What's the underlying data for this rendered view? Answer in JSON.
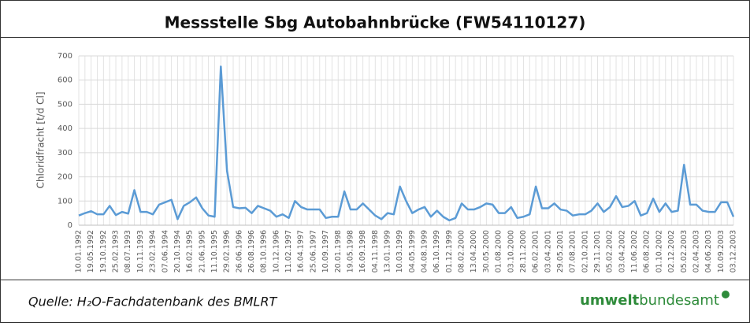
{
  "chart_data": {
    "type": "line",
    "title": "Messstelle Sbg Autobahnbrücke (FW54110127)",
    "y_label": "Chloridfracht [t/d Cl]",
    "source": "Quelle: H₂O-Fachdatenbank des BMLRT",
    "logo": {
      "bold": "umwelt",
      "light": "bundesamt"
    },
    "categories": [
      "10.01.1992",
      null,
      "19.05.1992",
      null,
      "19.10.1992",
      null,
      "25.02.1993",
      null,
      "08.07.1993",
      null,
      "10.11.1993",
      null,
      "23.02.1994",
      null,
      "07.06.1994",
      null,
      "20.10.1994",
      null,
      "16.02.1995",
      null,
      "21.06.1995",
      null,
      "11.10.1995",
      null,
      "29.02.1996",
      null,
      "26.06.1996",
      null,
      "26.08.1996",
      null,
      "08.10.1996",
      null,
      "10.12.1996",
      null,
      "11.02.1997",
      null,
      "16.04.1997",
      null,
      "25.06.1997",
      null,
      "10.09.1997",
      null,
      "20.01.1998",
      null,
      "19.05.1998",
      null,
      "16.09.1998",
      null,
      "04.11.1998",
      null,
      "13.01.1999",
      null,
      "10.03.1999",
      null,
      "04.05.1999",
      null,
      "04.08.1999",
      null,
      "06.10.1999",
      null,
      "01.12.1999",
      null,
      "08.02.2000",
      null,
      "13.04.2000",
      null,
      "30.05.2000",
      null,
      "01.08.2000",
      null,
      "03.10.2000",
      null,
      "28.11.2000",
      null,
      "06.02.2001",
      null,
      "03.04.2001",
      null,
      "29.05.2001",
      null,
      "07.08.2001",
      null,
      "02.10.2001",
      null,
      "29.11.2001",
      null,
      "05.02.2002",
      null,
      "03.04.2002",
      null,
      "11.06.2002",
      null,
      "06.08.2002",
      null,
      "01.10.2002",
      null,
      "02.12.2002",
      null,
      "05.02.2003",
      null,
      "02.04.2003",
      null,
      "04.06.2003",
      null,
      "10.09.2003",
      null,
      "03.12.2003"
    ],
    "series": [
      {
        "name": "Chloridfracht",
        "color": "#5b9bd5",
        "values": [
          40,
          50,
          58,
          45,
          45,
          80,
          42,
          55,
          48,
          145,
          55,
          55,
          45,
          85,
          95,
          105,
          25,
          80,
          95,
          115,
          70,
          40,
          35,
          656,
          225,
          75,
          70,
          72,
          50,
          80,
          70,
          60,
          35,
          45,
          30,
          100,
          75,
          65,
          65,
          65,
          30,
          35,
          35,
          140,
          65,
          65,
          90,
          65,
          40,
          25,
          50,
          45,
          160,
          100,
          50,
          65,
          75,
          35,
          60,
          35,
          20,
          30,
          90,
          65,
          65,
          75,
          90,
          85,
          50,
          50,
          75,
          30,
          35,
          45,
          160,
          70,
          70,
          90,
          65,
          60,
          40,
          45,
          45,
          60,
          90,
          55,
          75,
          120,
          75,
          80,
          100,
          40,
          50,
          110,
          55,
          90,
          55,
          60,
          250,
          85,
          85,
          60,
          55,
          55,
          95,
          95,
          35
        ]
      }
    ],
    "ylim": [
      0,
      700
    ],
    "yticks": [
      0,
      100,
      200,
      300,
      400,
      500,
      600,
      700
    ],
    "grid": true
  }
}
